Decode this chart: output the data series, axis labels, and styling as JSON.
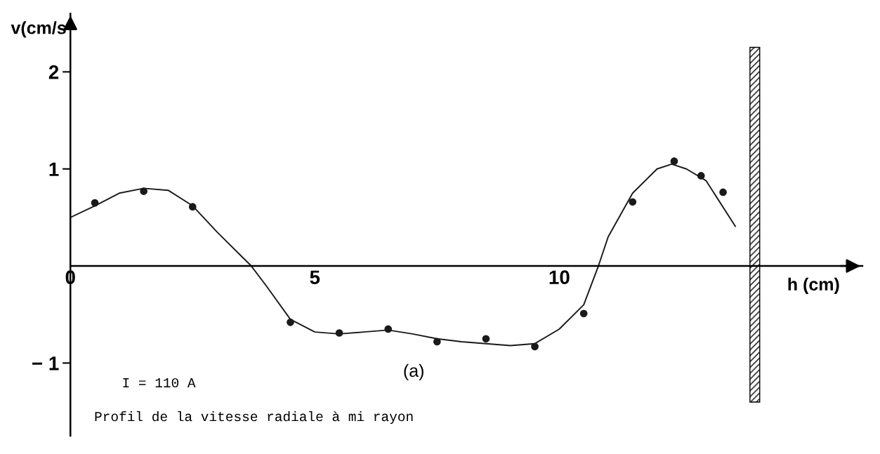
{
  "chart_data": {
    "type": "scatter",
    "xlabel": "h (cm)",
    "ylabel": "v(cm/s",
    "xlim": [
      0,
      16.2
    ],
    "ylim": [
      -1.75,
      2.6
    ],
    "xticks": [
      {
        "value": 0,
        "label": "0"
      },
      5,
      10
    ],
    "yticks": [
      {
        "value": -1,
        "label": "− 1"
      },
      1,
      2
    ],
    "grid": false,
    "series": [
      {
        "marker": "circle",
        "color": "#1a1a1a",
        "x": [
          0.5,
          1.5,
          2.5,
          4.5,
          5.5,
          6.5,
          7.5,
          8.5,
          9.5,
          10.5,
          11.5,
          12.35,
          12.9,
          13.35
        ],
        "values": [
          0.65,
          0.77,
          0.61,
          -0.58,
          -0.69,
          -0.65,
          -0.78,
          -0.75,
          -0.83,
          -0.49,
          0.66,
          1.08,
          0.93,
          0.76
        ]
      },
      {
        "type": "line",
        "marker": "none",
        "color": "#1a1a1a",
        "x": [
          0,
          0.5,
          1,
          1.5,
          2,
          2.5,
          3,
          3.5,
          3.7,
          4,
          4.5,
          5,
          5.5,
          6,
          6.5,
          7,
          7.5,
          8,
          8.5,
          9,
          9.5,
          10,
          10.5,
          10.8,
          11,
          11.5,
          12,
          12.3,
          12.6,
          13,
          13.6
        ],
        "values": [
          0.5,
          0.62,
          0.75,
          0.8,
          0.78,
          0.62,
          0.35,
          0.1,
          0,
          -0.2,
          -0.55,
          -0.68,
          -0.7,
          -0.68,
          -0.66,
          -0.7,
          -0.75,
          -0.78,
          -0.8,
          -0.82,
          -0.8,
          -0.65,
          -0.4,
          0,
          0.3,
          0.75,
          1.0,
          1.05,
          1.0,
          0.88,
          0.41
        ]
      }
    ],
    "bands": [
      {
        "axis": "x",
        "from": 13.9,
        "to": 14.1
      }
    ],
    "annotations": [
      "(a)",
      "I = 110 A",
      "Profil de la vitesse radiale à mi rayon"
    ]
  }
}
